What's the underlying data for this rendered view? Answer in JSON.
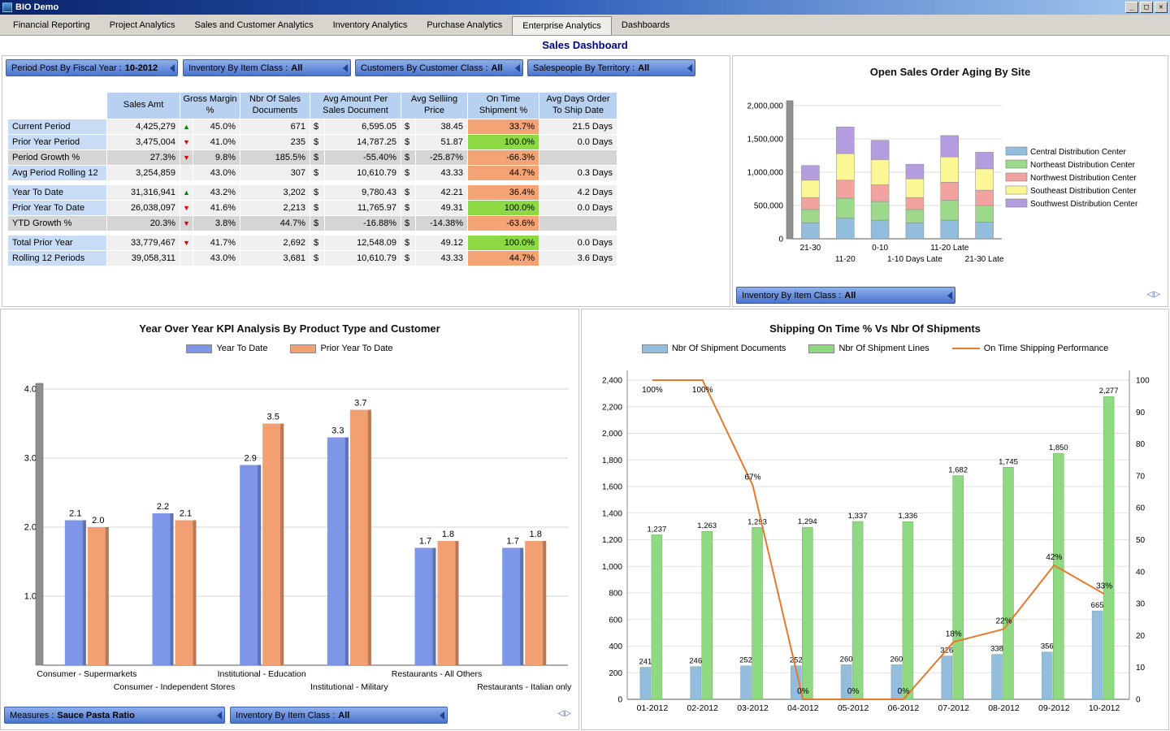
{
  "window": {
    "title": "BIO Demo",
    "controls": {
      "minimize": "_",
      "maximize": "□",
      "close": "✕"
    }
  },
  "nav": {
    "tabs": [
      "Financial Reporting",
      "Project Analytics",
      "Sales and Customer Analytics",
      "Inventory Analytics",
      "Purchase Analytics",
      "Enterprise Analytics",
      "Dashboards"
    ],
    "active_tab": "Enterprise Analytics"
  },
  "page_title": "Sales Dashboard",
  "panel_nav_icon": "◁▷",
  "icons": {
    "up_arrow": "▲",
    "down_arrow": "▼"
  },
  "filters": {
    "top": [
      {
        "label": "Period Post By Fiscal Year :",
        "value": "10-2012"
      },
      {
        "label": "Inventory By Item Class :",
        "value": "All"
      },
      {
        "label": "Customers By Customer Class :",
        "value": "All"
      },
      {
        "label": "Salespeople By Territory :",
        "value": "All"
      }
    ],
    "aging_panel": {
      "label": "Inventory By Item Class :",
      "value": "All"
    },
    "kpi_panel": [
      {
        "label": "Measures :",
        "value": "Sauce Pasta Ratio"
      },
      {
        "label": "Inventory By Item Class :",
        "value": "All"
      }
    ]
  },
  "kpi_table": {
    "columns": [
      "Sales Amt",
      "Gross Margin %",
      "Nbr Of Sales Documents",
      "Avg Amount Per Sales Document",
      "Avg Selliing Price",
      "On Time Shipment %",
      "Avg Days Order To Ship Date"
    ],
    "spacer_after": [
      3,
      6
    ],
    "rows": [
      {
        "label": "Current Period",
        "kind": "data",
        "sales": "4,425,279",
        "trend": "up",
        "margin": "45.0%",
        "docs": "671",
        "cur": "$",
        "amount": "6,595.05",
        "price": "38.45",
        "on_time": "33.7%",
        "on_time_status": "bad",
        "days": "21.5 Days"
      },
      {
        "label": "Prior Year Period",
        "kind": "data",
        "sales": "3,475,004",
        "trend": "down",
        "margin": "41.0%",
        "docs": "235",
        "cur": "$",
        "amount": "14,787.25",
        "price": "51.87",
        "on_time": "100.0%",
        "on_time_status": "good",
        "days": "0.0 Days"
      },
      {
        "label": "Period Growth %",
        "kind": "growth",
        "sales": "27.3%",
        "trend": "down",
        "margin": "9.8%",
        "docs": "185.5%",
        "cur": "$",
        "amount": "-55.40%",
        "price": "-25.87%",
        "on_time": "-66.3%",
        "on_time_status": "bad",
        "days": ""
      },
      {
        "label": "Avg Period Rolling 12",
        "kind": "data",
        "sales": "3,254,859",
        "trend": "",
        "margin": "43.0%",
        "docs": "307",
        "cur": "$",
        "amount": "10,610.79",
        "price": "43.33",
        "on_time": "44.7%",
        "on_time_status": "bad",
        "days": "0.3 Days"
      },
      {
        "label": "Year To Date",
        "kind": "data",
        "sales": "31,316,941",
        "trend": "up",
        "margin": "43.2%",
        "docs": "3,202",
        "cur": "$",
        "amount": "9,780.43",
        "price": "42.21",
        "on_time": "36.4%",
        "on_time_status": "bad",
        "days": "4.2 Days"
      },
      {
        "label": "Prior Year To Date",
        "kind": "data",
        "sales": "26,038,097",
        "trend": "down",
        "margin": "41.6%",
        "docs": "2,213",
        "cur": "$",
        "amount": "11,765.97",
        "price": "49.31",
        "on_time": "100.0%",
        "on_time_status": "good",
        "days": "0.0 Days"
      },
      {
        "label": "YTD Growth %",
        "kind": "growth",
        "sales": "20.3%",
        "trend": "down",
        "margin": "3.8%",
        "docs": "44.7%",
        "cur": "$",
        "amount": "-16.88%",
        "price": "-14.38%",
        "on_time": "-63.6%",
        "on_time_status": "bad",
        "days": ""
      },
      {
        "label": "Total Prior Year",
        "kind": "data",
        "sales": "33,779,467",
        "trend": "down",
        "margin": "41.7%",
        "docs": "2,692",
        "cur": "$",
        "amount": "12,548.09",
        "price": "49.12",
        "on_time": "100.0%",
        "on_time_status": "good",
        "days": "0.0 Days"
      },
      {
        "label": "Rolling 12 Periods",
        "kind": "data",
        "sales": "39,058,311",
        "trend": "",
        "margin": "43.0%",
        "docs": "3,681",
        "cur": "$",
        "amount": "10,610.79",
        "price": "43.33",
        "on_time": "44.7%",
        "on_time_status": "bad",
        "days": "3.6 Days"
      }
    ]
  },
  "chart_data": [
    {
      "type": "bar",
      "stacked": true,
      "title": "Open Sales Order Aging By Site",
      "categories": [
        "21-30",
        "11-20",
        "0-10",
        "1-10 Days Late",
        "11-20 Late",
        "21-30 Late"
      ],
      "series": [
        {
          "name": "Central Distribution Center",
          "color": "#92BDDC",
          "values": [
            240000,
            310000,
            280000,
            240000,
            280000,
            250000
          ]
        },
        {
          "name": "Northeast Distribution Center",
          "color": "#9CD98B",
          "values": [
            200000,
            300000,
            280000,
            200000,
            300000,
            250000
          ]
        },
        {
          "name": "Northwest Distribution Center",
          "color": "#F2A3A0",
          "values": [
            180000,
            270000,
            250000,
            180000,
            270000,
            230000
          ]
        },
        {
          "name": "Southeast Distribution Center",
          "color": "#FBF795",
          "values": [
            260000,
            400000,
            380000,
            280000,
            380000,
            320000
          ]
        },
        {
          "name": "Southwest Distribution Center",
          "color": "#B49DDE",
          "values": [
            220000,
            400000,
            290000,
            220000,
            320000,
            250000
          ]
        }
      ],
      "ylim": [
        0,
        2000000
      ],
      "ytick_step": 500000,
      "legend_position": "right",
      "xlabel": "",
      "ylabel": ""
    },
    {
      "type": "bar",
      "title": "Year Over Year KPI Analysis By Product Type and Customer",
      "categories": [
        "Consumer - Supermarkets",
        "Consumer - Independent Stores",
        "Institutional - Education",
        "Institutional - Military",
        "Restaurants - All Others",
        "Restaurants - Italian only"
      ],
      "series": [
        {
          "name": "Year To Date",
          "color": "#7D96E8",
          "values": [
            2.1,
            2.2,
            2.9,
            3.3,
            1.7,
            1.7
          ]
        },
        {
          "name": "Prior Year To Date",
          "color": "#F2A071",
          "values": [
            2.0,
            2.1,
            3.5,
            3.7,
            1.8,
            1.8
          ]
        }
      ],
      "ylim": [
        0,
        4
      ],
      "yticks": [
        "1.0",
        "2.0",
        "3.0",
        "4.0"
      ],
      "data_labels": true,
      "legend_position": "top",
      "xlabel": "",
      "ylabel": ""
    },
    {
      "type": "combo",
      "title": "Shipping On Time % Vs Nbr Of Shipments",
      "categories": [
        "01-2012",
        "02-2012",
        "03-2012",
        "04-2012",
        "05-2012",
        "06-2012",
        "07-2012",
        "08-2012",
        "09-2012",
        "10-2012"
      ],
      "bar_series": [
        {
          "name": "Nbr Of Shipment Documents",
          "color": "#92BDDC",
          "values": [
            241,
            246,
            252,
            252,
            260,
            260,
            326,
            338,
            356,
            665
          ]
        },
        {
          "name": "Nbr Of Shipment Lines",
          "color": "#90D983",
          "values": [
            1237,
            1263,
            1293,
            1294,
            1337,
            1336,
            1682,
            1745,
            1850,
            2277
          ]
        }
      ],
      "line_series": {
        "name": "On Time Shipping Performance",
        "color": "#E8782A",
        "values": [
          100,
          100,
          67,
          0,
          0,
          0,
          18,
          22,
          42,
          33
        ]
      },
      "ylim_left": [
        0,
        2400
      ],
      "ytick_step_left": 200,
      "ylim_right": [
        0,
        100
      ],
      "ytick_step_right": 10,
      "data_label_color": "#993333",
      "legend_position": "top"
    }
  ]
}
